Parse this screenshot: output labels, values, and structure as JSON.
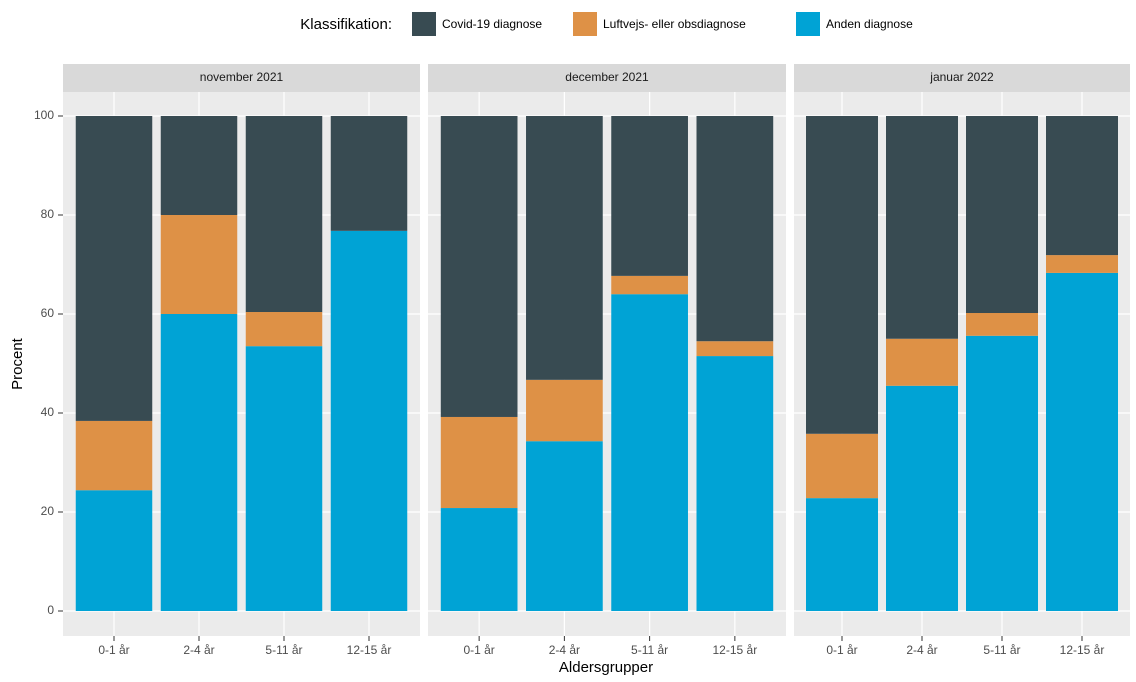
{
  "chart_data": {
    "type": "bar",
    "stacked": true,
    "legend_title": "Klassifikation:",
    "y_label": "Procent",
    "x_label": "Aldersgrupper",
    "ylim": [
      0,
      100
    ],
    "yticks": [
      0,
      20,
      40,
      60,
      80,
      100
    ],
    "grid": true,
    "categories": [
      "0-1 år",
      "2-4 år",
      "5-11 år",
      "12-15 år"
    ],
    "facets": [
      "november 2021",
      "december 2021",
      "januar 2022"
    ],
    "series": [
      {
        "name": "Covid-19 diagnose",
        "color": "#384b52",
        "values": [
          [
            61.6,
            20,
            39.6,
            23.2
          ],
          [
            60.8,
            53.3,
            32.3,
            45.5
          ],
          [
            64.2,
            45,
            39.8,
            28.1
          ]
        ]
      },
      {
        "name": "Luftvejs- eller obsdiagnose",
        "color": "#de9146",
        "values": [
          [
            14,
            20,
            6.9,
            0
          ],
          [
            18.4,
            12.4,
            3.7,
            3
          ],
          [
            13,
            9.5,
            4.6,
            3.6
          ]
        ]
      },
      {
        "name": "Anden diagnose",
        "color": "#00a3d5",
        "values": [
          [
            24.4,
            60,
            53.5,
            76.8
          ],
          [
            20.8,
            34.3,
            64,
            51.5
          ],
          [
            22.8,
            45.5,
            55.6,
            68.3
          ]
        ]
      }
    ]
  }
}
